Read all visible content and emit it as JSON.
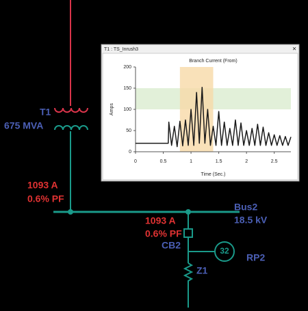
{
  "diagram": {
    "transformer": {
      "name": "T1",
      "rating": "675 MVA",
      "current": "1093 A",
      "pf": "0.6% PF"
    },
    "bus": {
      "name": "Bus2",
      "voltage": "18.5 kV"
    },
    "branch": {
      "current": "1093 A",
      "pf": "0.6% PF",
      "breaker": "CB2",
      "relay_number": "32",
      "relay": "RP2",
      "impedance": "Z1"
    }
  },
  "window": {
    "title": "T1 : TS_Inrush3",
    "close": "×"
  },
  "chart_data": {
    "type": "line",
    "title": "Branch Current (From)",
    "x_label": "Time (Sec.)",
    "y_label": "Amps",
    "x": [
      0,
      0.59,
      0.6,
      0.65,
      0.7,
      0.75,
      0.8,
      0.85,
      0.9,
      0.95,
      1.0,
      1.05,
      1.1,
      1.15,
      1.2,
      1.25,
      1.3,
      1.35,
      1.4,
      1.45,
      1.5,
      1.55,
      1.6,
      1.65,
      1.7,
      1.75,
      1.8,
      1.85,
      1.9,
      1.95,
      2.0,
      2.05,
      2.1,
      2.15,
      2.2,
      2.25,
      2.3,
      2.35,
      2.4,
      2.45,
      2.5,
      2.55,
      2.6,
      2.65,
      2.7,
      2.75,
      2.8
    ],
    "values": [
      20,
      20,
      70,
      15,
      60,
      12,
      72,
      14,
      75,
      15,
      100,
      15,
      140,
      20,
      152,
      20,
      100,
      15,
      60,
      15,
      95,
      15,
      70,
      15,
      55,
      15,
      75,
      15,
      68,
      15,
      50,
      15,
      55,
      15,
      65,
      15,
      58,
      15,
      45,
      15,
      40,
      15,
      38,
      15,
      36,
      15,
      35
    ],
    "color": "#1a1a1a",
    "xlim": [
      0,
      2.8
    ],
    "xticks": [
      0,
      0.5,
      1,
      1.5,
      2,
      2.5
    ],
    "ylim": [
      0,
      200
    ],
    "yticks": [
      0,
      50,
      100,
      150,
      200
    ],
    "x_band": [
      0.8,
      1.4
    ],
    "x_band_color": "#f7d9a8",
    "y_band": [
      100,
      150
    ],
    "y_band_color": "#e2f0d9"
  }
}
